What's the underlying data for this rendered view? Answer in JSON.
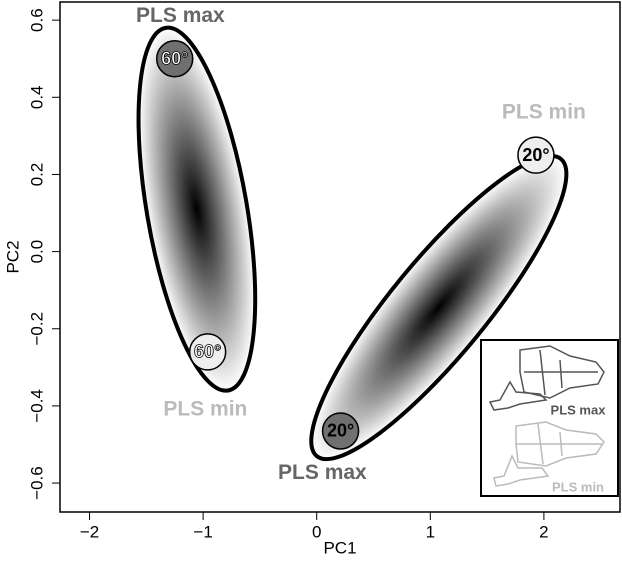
{
  "chart_data": {
    "type": "ellipse-scatter",
    "xlabel": "PC1",
    "ylabel": "PC2",
    "xlim": [
      -2.26,
      2.67
    ],
    "ylim": [
      -0.675,
      0.647
    ],
    "xticks": [
      {
        "value": -2,
        "label": "−2"
      },
      {
        "value": -1,
        "label": "−1"
      },
      0,
      1,
      2
    ],
    "yticks": [
      {
        "value": -0.6,
        "label": "−0.6"
      },
      {
        "value": -0.4,
        "label": "−0.4"
      },
      {
        "value": -0.2,
        "label": "−0.2"
      },
      {
        "value": 0,
        "label": "0.0"
      },
      0.2,
      0.4,
      0.6
    ],
    "ellipses": [
      {
        "x": [
          -1.33,
          -0.78
        ],
        "y": [
          0.58,
          -0.36
        ],
        "minor_axis": 0.88
      },
      {
        "x": [
          2.15,
          0.0
        ],
        "y": [
          0.24,
          -0.53
        ],
        "minor_axis": 0.84
      }
    ],
    "points": [
      {
        "x": -1.25,
        "y": 0.5,
        "label": "60°",
        "color": "#707070",
        "text_color": "#ffffff"
      },
      {
        "x": -0.96,
        "y": -0.26,
        "label": "60°",
        "color": "#eeeeee",
        "text_color": "#ffffff"
      },
      {
        "x": 1.93,
        "y": 0.25,
        "label": "20°",
        "color": "#eeeeee",
        "text_color": "#000000"
      },
      {
        "x": 0.21,
        "y": -0.465,
        "label": "20°",
        "color": "#707070",
        "text_color": "#000000"
      }
    ],
    "annotations": [
      {
        "text": "PLS max",
        "x": -1.2,
        "y": 0.61,
        "color": "#666666"
      },
      {
        "text": "PLS min",
        "x": -0.98,
        "y": -0.41,
        "color": "#bbbbbb"
      },
      {
        "text": "PLS min",
        "x": 2.0,
        "y": 0.36,
        "color": "#bbbbbb"
      },
      {
        "text": "PLS max",
        "x": 0.05,
        "y": -0.575,
        "color": "#666666"
      }
    ],
    "legend": [
      {
        "name": "PLS max",
        "color": "#555555"
      },
      {
        "name": "PLS min",
        "color": "#bbbbbb"
      }
    ]
  }
}
